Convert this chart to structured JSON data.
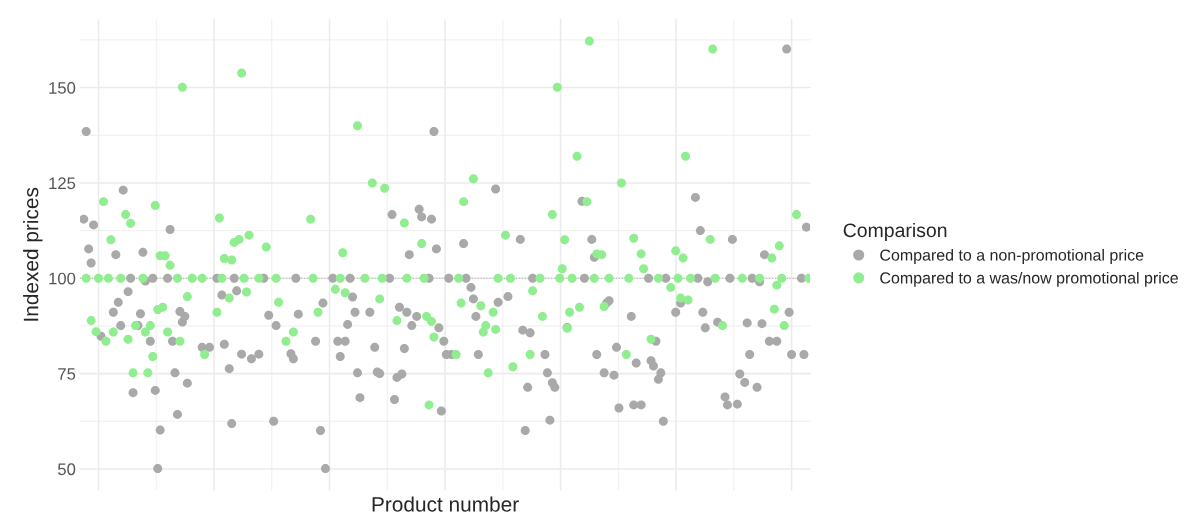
{
  "chart_data": {
    "type": "scatter",
    "xlabel": "Product number",
    "ylabel": "Indexed prices",
    "legend_title": "Comparison",
    "legend": "right",
    "grid": true,
    "marker": "circle",
    "tick_labels": "y",
    "categories": [
      null,
      null,
      null,
      null,
      null,
      null,
      null,
      null,
      null,
      null,
      null,
      null,
      null,
      null,
      null,
      null,
      null,
      null,
      null,
      null,
      null,
      null,
      null,
      null,
      null,
      null,
      null,
      null,
      null,
      null,
      null,
      null,
      null,
      null,
      null,
      null,
      null,
      null,
      null,
      null,
      null,
      null,
      null,
      null,
      null,
      null,
      null,
      null,
      null,
      null,
      null,
      null,
      null,
      null,
      null,
      null,
      null,
      null,
      null,
      null,
      null,
      null,
      null,
      null,
      null,
      null,
      null,
      null,
      null,
      null,
      null,
      null,
      null,
      null,
      null,
      null,
      null,
      null,
      null,
      null,
      null,
      null,
      null,
      null,
      null,
      null,
      null,
      null,
      null,
      null,
      null,
      null,
      null,
      null,
      null,
      null,
      null,
      null,
      null,
      null,
      null,
      null,
      null,
      null,
      null,
      null,
      null,
      null,
      null,
      null,
      null,
      null,
      null,
      null,
      null,
      null,
      null,
      null,
      null,
      null,
      null,
      null,
      null,
      null,
      null,
      null,
      null,
      null,
      null,
      null,
      null,
      null,
      null,
      null,
      null,
      null,
      null,
      null,
      null,
      null,
      null,
      null,
      null,
      null,
      null,
      null,
      null,
      null,
      null,
      null,
      null,
      null,
      null,
      null,
      null,
      null,
      null,
      null,
      null,
      null,
      null,
      null,
      null,
      null,
      null,
      null,
      null,
      null,
      null,
      null,
      null,
      null,
      null,
      null,
      null,
      null,
      null,
      null,
      null,
      null,
      null,
      null,
      null,
      null,
      null,
      null,
      null,
      null,
      null,
      null,
      null,
      null,
      null,
      null,
      null,
      null,
      null,
      null,
      null,
      null,
      null,
      null,
      null,
      null,
      null,
      null,
      null,
      null,
      null,
      null,
      null,
      null,
      null,
      null,
      null,
      null,
      null,
      null,
      null,
      null,
      null,
      null,
      null,
      null,
      null,
      null,
      null,
      null,
      null,
      null,
      null,
      null,
      null,
      null,
      null,
      null,
      null,
      null,
      null,
      null,
      null,
      null,
      null,
      null,
      null,
      null,
      null,
      null,
      null,
      null,
      null,
      null,
      null,
      null,
      null,
      null,
      null,
      null,
      null,
      null,
      null,
      null,
      null,
      null,
      null,
      null,
      null,
      null,
      null,
      null,
      null,
      null,
      null,
      null,
      null,
      null,
      null,
      null,
      null,
      null,
      null,
      null,
      null,
      null,
      null,
      null,
      null,
      null,
      null,
      null,
      null,
      null,
      null,
      null,
      null,
      null
    ],
    "ylim": [
      44.5,
      167.8
    ],
    "yticks": [
      50,
      {
        "value": 62.5,
        "label": null
      },
      75,
      {
        "value": 87.5,
        "label": null
      },
      100,
      {
        "value": 112.5,
        "label": null
      },
      125,
      {
        "value": 137.5,
        "label": null
      },
      150,
      {
        "value": 162.5,
        "label": null
      }
    ],
    "ref_lines": [
      {
        "axis": "y",
        "value": 100,
        "color": "#a9a9a9",
        "line_style": "dotted"
      }
    ],
    "series": [
      {
        "name": "Compared to a non-promotional price",
        "color": "#a9a9a9",
        "values": [
          null,
          115.5,
          138.5,
          107.7,
          104.0,
          114.0,
          null,
          null,
          84.8,
          null,
          null,
          null,
          null,
          91.1,
          106.2,
          93.7,
          87.6,
          123.1,
          null,
          96.5,
          100,
          70.0,
          null,
          87.6,
          90.7,
          106.8,
          99.3,
          null,
          83.5,
          100,
          70.6,
          50.1,
          60.2,
          null,
          null,
          100,
          112.8,
          83.5,
          75.2,
          64.3,
          91.3,
          88.5,
          90.0,
          72.5,
          null,
          null,
          null,
          null,
          null,
          81.9,
          null,
          null,
          81.9,
          null,
          null,
          100,
          null,
          95.6,
          82.7,
          null,
          76.3,
          61.9,
          100,
          96.7,
          null,
          80.1,
          null,
          null,
          null,
          78.9,
          null,
          null,
          80.1,
          null,
          100,
          null,
          90.3,
          null,
          62.5,
          87.6,
          null,
          null,
          null,
          null,
          null,
          80.2,
          78.9,
          100,
          90.6,
          null,
          null,
          null,
          null,
          null,
          null,
          83.5,
          null,
          60.1,
          93.5,
          50.1,
          null,
          null,
          100,
          null,
          83.5,
          79.5,
          null,
          83.5,
          87.9,
          100,
          95.1,
          91.1,
          75.2,
          68.7,
          null,
          null,
          null,
          91.1,
          null,
          81.9,
          75.4,
          75.0,
          null,
          null,
          null,
          100,
          116.7,
          68.2,
          74.0,
          92.4,
          74.9,
          81.6,
          91.1,
          106.2,
          87.6,
          null,
          90.0,
          118.1,
          116.1,
          null,
          null,
          100,
          115.5,
          138.5,
          107.7,
          87.0,
          65.2,
          83.5,
          80.0,
          100,
          80.0,
          null,
          null,
          null,
          null,
          109.1,
          100,
          null,
          97.6,
          94.6,
          90.0,
          80.0,
          null,
          null,
          null,
          null,
          null,
          null,
          123.4,
          93.7,
          null,
          null,
          null,
          95.2,
          null,
          null,
          null,
          null,
          110.2,
          86.4,
          60.1,
          71.4,
          85.7,
          100,
          null,
          null,
          null,
          null,
          80.0,
          75.2,
          62.8,
          72.6,
          71.4,
          null,
          null,
          null,
          null,
          87.1,
          null,
          null,
          null,
          null,
          null,
          120.2,
          100,
          null,
          null,
          110.2,
          105.5,
          80.0,
          null,
          null,
          75.2,
          93.5,
          94.1,
          null,
          74.6,
          81.9,
          66.0,
          null,
          null,
          null,
          null,
          90.0,
          66.8,
          77.8,
          null,
          66.8,
          null,
          null,
          100,
          78.4,
          77.0,
          83.5,
          73.5,
          75.2,
          62.5,
          100,
          null,
          null,
          null,
          91.1,
          null,
          93.5,
          null,
          null,
          null,
          null,
          null,
          121.2,
          100,
          112.5,
          91.1,
          87.0,
          99.1,
          null,
          null,
          null,
          88.5,
          null,
          null,
          68.9,
          66.8,
          100,
          110.2,
          null,
          67.0,
          74.9,
          null,
          72.7,
          88.3,
          80.0,
          100,
          null,
          71.4,
          99.1,
          88.1,
          106.2,
          null,
          83.5,
          null,
          null,
          83.5,
          null,
          null,
          null,
          160.1,
          91.1,
          80.0,
          null,
          null,
          null,
          100,
          80.0,
          113.4,
          null
        ]
      },
      {
        "name": "Compared to a was/now promotional price",
        "color": "#90ee90",
        "values": [
          null,
          null,
          100,
          null,
          88.9,
          null,
          86.0,
          100,
          null,
          120.1,
          83.5,
          100,
          110.1,
          85.9,
          null,
          null,
          100,
          null,
          116.7,
          84.0,
          114.4,
          75.2,
          87.6,
          null,
          null,
          100,
          85.9,
          75.2,
          87.6,
          79.5,
          119.1,
          91.8,
          105.9,
          92.4,
          105.9,
          85.9,
          103.4,
          null,
          null,
          100,
          83.5,
          150.1,
          null,
          95.2,
          null,
          100,
          null,
          null,
          null,
          100,
          80.0,
          null,
          null,
          null,
          null,
          91.1,
          115.8,
          100,
          105.2,
          null,
          94.8,
          104.8,
          109.4,
          null,
          110.2,
          153.8,
          100,
          96.4,
          111.3,
          null,
          null,
          null,
          100,
          null,
          null,
          108.2,
          null,
          null,
          null,
          100,
          93.7,
          null,
          null,
          83.5,
          null,
          null,
          85.9,
          null,
          null,
          null,
          null,
          null,
          null,
          115.5,
          100,
          null,
          91.1,
          null,
          null,
          null,
          null,
          null,
          null,
          97.1,
          null,
          100,
          106.7,
          96.2,
          null,
          null,
          null,
          null,
          140.0,
          null,
          null,
          100,
          null,
          null,
          125.0,
          null,
          null,
          94.6,
          100,
          123.6,
          null,
          null,
          null,
          null,
          88.9,
          null,
          null,
          114.5,
          100,
          null,
          null,
          null,
          null,
          null,
          109.1,
          100,
          90.0,
          66.8,
          88.7,
          84.6,
          null,
          null,
          null,
          null,
          null,
          null,
          null,
          null,
          80.0,
          100,
          93.5,
          120.1,
          null,
          null,
          null,
          126.1,
          null,
          null,
          92.8,
          85.9,
          87.6,
          75.2,
          null,
          91.1,
          86.6,
          100,
          null,
          null,
          111.3,
          null,
          100,
          76.8,
          null,
          null,
          null,
          null,
          null,
          null,
          80.0,
          96.7,
          null,
          null,
          100,
          90.0,
          null,
          null,
          null,
          116.7,
          null,
          150.1,
          100,
          102.5,
          110.1,
          86.9,
          91.1,
          100,
          null,
          132.0,
          92.4,
          null,
          null,
          120.1,
          162.2,
          null,
          100,
          106.4,
          null,
          106.2,
          92.6,
          null,
          100,
          null,
          null,
          null,
          null,
          125.0,
          null,
          80.0,
          100,
          null,
          110.5,
          null,
          null,
          106.4,
          102.5,
          null,
          null,
          84.0,
          null,
          null,
          100,
          null,
          null,
          null,
          null,
          97.6,
          null,
          107.2,
          100,
          94.8,
          105.3,
          132.0,
          94.3,
          100,
          null,
          null,
          null,
          null,
          null,
          null,
          null,
          110.2,
          160.1,
          100,
          null,
          null,
          87.6,
          null,
          null,
          null,
          null,
          null,
          null,
          null,
          100,
          null,
          null,
          null,
          null,
          null,
          null,
          100,
          null,
          null,
          null,
          null,
          105.3,
          91.9,
          98.2,
          108.5,
          100,
          87.6,
          null,
          null,
          null,
          null,
          116.7,
          null,
          null,
          null,
          null,
          100
        ]
      }
    ]
  }
}
